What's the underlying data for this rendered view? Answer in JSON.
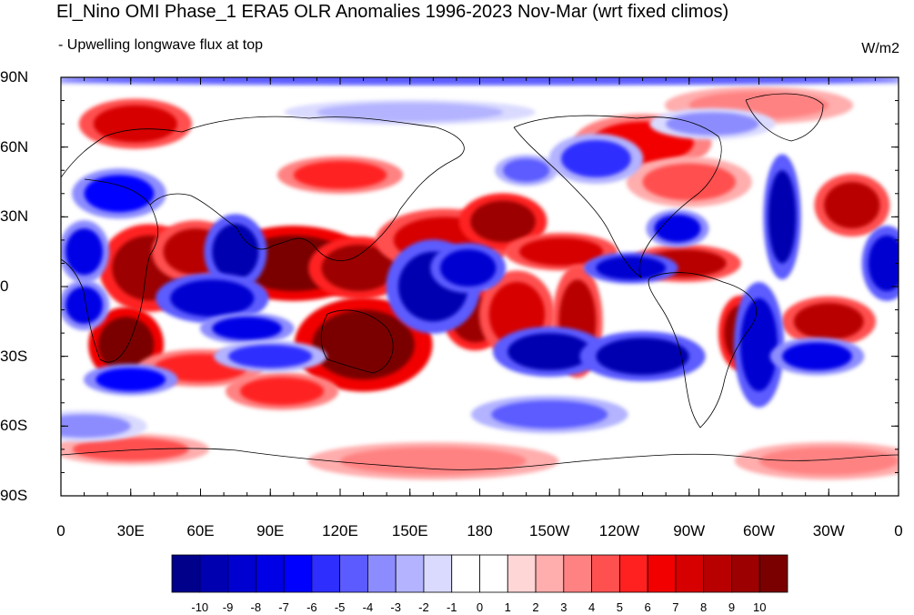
{
  "header": {
    "title": "El_Nino OMI Phase_1 ERA5 OLR Anomalies 1996-2023 Nov-Mar (wrt fixed climos)",
    "subtitle": "- Upwelling longwave flux at top",
    "units": "W/m2"
  },
  "map": {
    "projection": "cylindrical-equidistant",
    "lon_range": [
      0,
      360
    ],
    "lat_range": [
      -90,
      90
    ],
    "lat_ticks": [
      {
        "value": 90,
        "label": "90N"
      },
      {
        "value": 60,
        "label": "60N"
      },
      {
        "value": 30,
        "label": "30N"
      },
      {
        "value": 0,
        "label": "0"
      },
      {
        "value": -30,
        "label": "30S"
      },
      {
        "value": -60,
        "label": "60S"
      },
      {
        "value": -90,
        "label": "90S"
      }
    ],
    "lon_ticks": [
      {
        "value": 0,
        "label": "0"
      },
      {
        "value": 30,
        "label": "30E"
      },
      {
        "value": 60,
        "label": "60E"
      },
      {
        "value": 90,
        "label": "90E"
      },
      {
        "value": 120,
        "label": "120E"
      },
      {
        "value": 150,
        "label": "150E"
      },
      {
        "value": 180,
        "label": "180"
      },
      {
        "value": 210,
        "label": "150W"
      },
      {
        "value": 240,
        "label": "120W"
      },
      {
        "value": 270,
        "label": "90W"
      },
      {
        "value": 300,
        "label": "60W"
      },
      {
        "value": 330,
        "label": "30W"
      },
      {
        "value": 360,
        "label": "0"
      }
    ],
    "anomaly_blobs": [
      {
        "lon": 38,
        "lat": 8,
        "rx": 16,
        "ry": 14,
        "value": 9
      },
      {
        "lon": 58,
        "lat": 15,
        "rx": 14,
        "ry": 10,
        "value": 8
      },
      {
        "lon": 100,
        "lat": 10,
        "rx": 25,
        "ry": 12,
        "value": 10
      },
      {
        "lon": 128,
        "lat": 8,
        "rx": 16,
        "ry": 10,
        "value": 9
      },
      {
        "lon": 130,
        "lat": -25,
        "rx": 22,
        "ry": 15,
        "value": 10
      },
      {
        "lon": 28,
        "lat": -25,
        "rx": 12,
        "ry": 12,
        "value": 10
      },
      {
        "lon": 165,
        "lat": 20,
        "rx": 22,
        "ry": 10,
        "value": 7
      },
      {
        "lon": 190,
        "lat": 28,
        "rx": 14,
        "ry": 9,
        "value": 9
      },
      {
        "lon": 215,
        "lat": 15,
        "rx": 18,
        "ry": 6,
        "value": 7
      },
      {
        "lon": 178,
        "lat": -14,
        "rx": 10,
        "ry": 10,
        "value": 9
      },
      {
        "lon": 196,
        "lat": -12,
        "rx": 12,
        "ry": 14,
        "value": 7
      },
      {
        "lon": 222,
        "lat": -15,
        "rx": 8,
        "ry": 18,
        "value": 8
      },
      {
        "lon": 268,
        "lat": 10,
        "rx": 18,
        "ry": 6,
        "value": 8
      },
      {
        "lon": 292,
        "lat": -20,
        "rx": 7,
        "ry": 12,
        "value": 9
      },
      {
        "lon": 330,
        "lat": -15,
        "rx": 15,
        "ry": 8,
        "value": 8
      },
      {
        "lon": 340,
        "lat": 35,
        "rx": 12,
        "ry": 10,
        "value": 8
      },
      {
        "lon": 32,
        "lat": 70,
        "rx": 18,
        "ry": 8,
        "value": 7
      },
      {
        "lon": 250,
        "lat": 62,
        "rx": 22,
        "ry": 9,
        "value": 6
      },
      {
        "lon": 120,
        "lat": 48,
        "rx": 20,
        "ry": 6,
        "value": 5
      },
      {
        "lon": 95,
        "lat": -45,
        "rx": 18,
        "ry": 6,
        "value": 5
      },
      {
        "lon": 60,
        "lat": -35,
        "rx": 20,
        "ry": 6,
        "value": 5
      },
      {
        "lon": 270,
        "lat": 45,
        "rx": 20,
        "ry": 8,
        "value": 4
      },
      {
        "lon": 30,
        "lat": -70,
        "rx": 25,
        "ry": 5,
        "value": 4
      },
      {
        "lon": 160,
        "lat": -75,
        "rx": 40,
        "ry": 6,
        "value": 3
      },
      {
        "lon": 330,
        "lat": -75,
        "rx": 30,
        "ry": 6,
        "value": 3
      },
      {
        "lon": 300,
        "lat": 78,
        "rx": 30,
        "ry": 6,
        "value": 3
      },
      {
        "lon": 75,
        "lat": 15,
        "rx": 10,
        "ry": 12,
        "value": -10
      },
      {
        "lon": 65,
        "lat": -5,
        "rx": 18,
        "ry": 8,
        "value": -9
      },
      {
        "lon": 80,
        "lat": -18,
        "rx": 15,
        "ry": 5,
        "value": -8
      },
      {
        "lon": 90,
        "lat": -30,
        "rx": 18,
        "ry": 5,
        "value": -6
      },
      {
        "lon": 160,
        "lat": 0,
        "rx": 15,
        "ry": 15,
        "value": -10
      },
      {
        "lon": 175,
        "lat": 8,
        "rx": 12,
        "ry": 8,
        "value": -9
      },
      {
        "lon": 245,
        "lat": 8,
        "rx": 15,
        "ry": 5,
        "value": -9
      },
      {
        "lon": 210,
        "lat": -28,
        "rx": 18,
        "ry": 8,
        "value": -10
      },
      {
        "lon": 250,
        "lat": -30,
        "rx": 20,
        "ry": 8,
        "value": -10
      },
      {
        "lon": 300,
        "lat": -25,
        "rx": 8,
        "ry": 20,
        "value": -9
      },
      {
        "lon": 325,
        "lat": -30,
        "rx": 15,
        "ry": 6,
        "value": -8
      },
      {
        "lon": 310,
        "lat": 30,
        "rx": 6,
        "ry": 20,
        "value": -10
      },
      {
        "lon": 355,
        "lat": 10,
        "rx": 8,
        "ry": 12,
        "value": -9
      },
      {
        "lon": 10,
        "lat": 15,
        "rx": 8,
        "ry": 10,
        "value": -8
      },
      {
        "lon": 265,
        "lat": 25,
        "rx": 10,
        "ry": 6,
        "value": -8
      },
      {
        "lon": 25,
        "lat": 40,
        "rx": 15,
        "ry": 8,
        "value": -7
      },
      {
        "lon": 10,
        "lat": -8,
        "rx": 8,
        "ry": 8,
        "value": -8
      },
      {
        "lon": 30,
        "lat": -40,
        "rx": 15,
        "ry": 5,
        "value": -7
      },
      {
        "lon": 230,
        "lat": 55,
        "rx": 15,
        "ry": 8,
        "value": -6
      },
      {
        "lon": 200,
        "lat": 50,
        "rx": 10,
        "ry": 5,
        "value": -5
      },
      {
        "lon": 210,
        "lat": -55,
        "rx": 25,
        "ry": 6,
        "value": -5
      },
      {
        "lon": 280,
        "lat": 70,
        "rx": 20,
        "ry": 5,
        "value": -4
      },
      {
        "lon": 150,
        "lat": 75,
        "rx": 40,
        "ry": 4,
        "value": -3
      },
      {
        "lon": 10,
        "lat": -60,
        "rx": 20,
        "ry": 5,
        "value": -4
      },
      {
        "lon": 180,
        "lat": 89,
        "rx": 180,
        "ry": 2,
        "value": -5
      }
    ]
  },
  "colorbar": {
    "levels": [
      "-10",
      "-9",
      "-8",
      "-7",
      "-6",
      "-5",
      "-4",
      "-3",
      "-2",
      "-1",
      "0",
      "1",
      "2",
      "3",
      "4",
      "5",
      "6",
      "7",
      "8",
      "9",
      "10"
    ],
    "colors": [
      "#00008b",
      "#0000b0",
      "#0000d0",
      "#0000e6",
      "#0000ff",
      "#2e2eff",
      "#5b5bff",
      "#8c8cff",
      "#b3b3ff",
      "#dadaff",
      "#ffffff",
      "#ffffff",
      "#ffd6d6",
      "#ffadad",
      "#ff8282",
      "#ff5050",
      "#ff2020",
      "#f20000",
      "#d60000",
      "#b80000",
      "#9c0000",
      "#7a0000"
    ]
  }
}
